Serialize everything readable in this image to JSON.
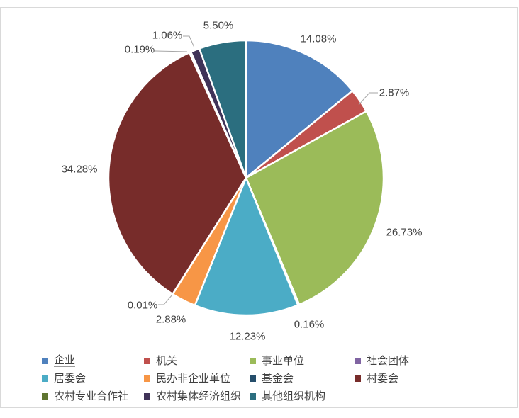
{
  "chart_data": {
    "type": "pie",
    "title": "",
    "unit": "percent",
    "direction": "clockwise",
    "start_angle_deg": 0,
    "legend_position": "bottom",
    "data_labels": "outside",
    "label_color": "#404040",
    "leader_line_color": "#a6a6a6",
    "slice_border_color": "#ffffff",
    "series": [
      {
        "label": "企业",
        "value": 14.08,
        "display": "14.08%",
        "color": "#4F81BD"
      },
      {
        "label": "机关",
        "value": 2.87,
        "display": "2.87%",
        "color": "#C0504D"
      },
      {
        "label": "事业单位",
        "value": 26.73,
        "display": "26.73%",
        "color": "#9BBB59"
      },
      {
        "label": "社会团体",
        "value": 0.16,
        "display": "0.16%",
        "color": "#8064A2"
      },
      {
        "label": "居委会",
        "value": 12.23,
        "display": "12.23%",
        "color": "#4BACC6"
      },
      {
        "label": "民办非企业单位",
        "value": 2.88,
        "display": "2.88%",
        "color": "#F79646"
      },
      {
        "label": "基金会",
        "value": 0.01,
        "display": "0.01%",
        "color": "#254E6B"
      },
      {
        "label": "村委会",
        "value": 34.28,
        "display": "34.28%",
        "color": "#772C2A"
      },
      {
        "label": "农村专业合作社",
        "value": 0.19,
        "display": "0.19%",
        "color": "#5F7530"
      },
      {
        "label": "农村集体经济组织",
        "value": 1.06,
        "display": "1.06%",
        "color": "#403358"
      },
      {
        "label": "其他组织机构",
        "value": 5.5,
        "display": "5.50%",
        "color": "#2B6E7F"
      }
    ]
  }
}
